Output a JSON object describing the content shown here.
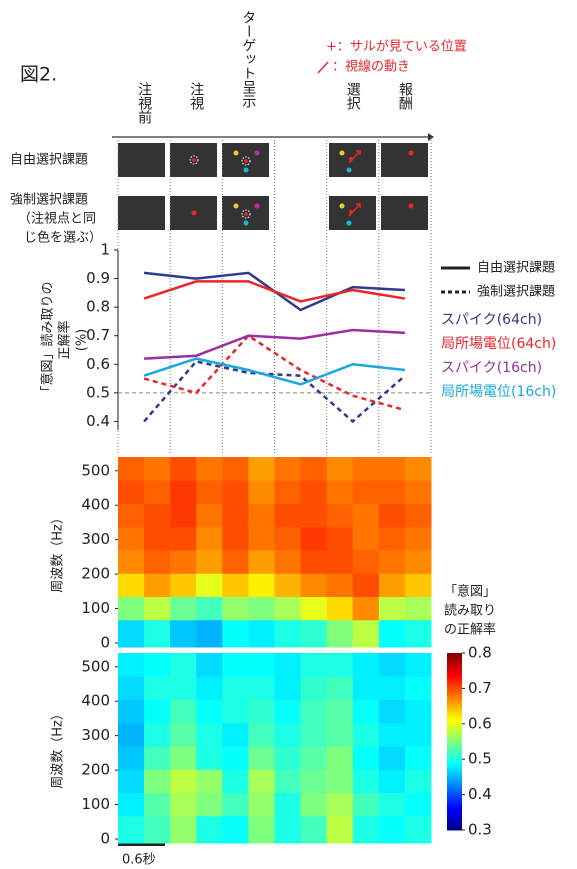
{
  "figure_label": "図2.",
  "annotations": [
    "+：サルが見ている位置",
    "：視線の動き"
  ],
  "row_labels": [
    [
      "自由選択課題"
    ],
    [
      "強制選択課題",
      "（注視点と同",
      "じ色を選ぶ）"
    ]
  ],
  "chart_data": [
    {
      "type": "line",
      "categories": [
        "注視前",
        "注視",
        "ターゲット呈示",
        null,
        "選択",
        "報酬"
      ],
      "ylabel": [
        "「意図」読み取りの",
        "正解率",
        "(%)"
      ],
      "ylim": [
        0.37,
        1.0
      ],
      "yticks": [
        0.4,
        0.5,
        0.6,
        0.7,
        0.8,
        0.9,
        1
      ],
      "hline": 0.5,
      "line_styles": [
        "自由選択課題",
        "強制選択課題"
      ],
      "series": [
        {
          "name": "スパイク(64ch)",
          "color": "#2e3a8c",
          "values": [
            0.92,
            0.9,
            0.92,
            0.79,
            0.87,
            0.86
          ],
          "forced_values": [
            0.4,
            0.61,
            0.57,
            0.56,
            0.4,
            0.56
          ]
        },
        {
          "name": "局所場電位(64ch)",
          "color": "#e8262b",
          "values": [
            0.83,
            0.89,
            0.89,
            0.82,
            0.86,
            0.83
          ],
          "forced_values": [
            0.55,
            0.5,
            0.7,
            0.58,
            0.49,
            0.44
          ]
        },
        {
          "name": "スパイク(16ch)",
          "color": "#9b2fa0",
          "values": [
            0.62,
            0.63,
            0.7,
            0.69,
            0.72,
            0.71
          ]
        },
        {
          "name": "局所場電位(16ch)",
          "color": "#1aa8e0",
          "values": [
            0.56,
            0.62,
            0.58,
            0.53,
            0.6,
            0.58
          ]
        }
      ]
    },
    {
      "type": "heatmap",
      "ylabel": "周波数（Hz）",
      "ylim": [
        0,
        540
      ],
      "yticks": [
        0,
        100,
        200,
        300,
        400,
        500
      ],
      "clim": [
        0.3,
        0.8
      ],
      "values": [
        [
          0.47,
          0.5,
          0.46,
          0.45,
          0.49,
          0.48,
          0.5,
          0.51,
          0.55,
          0.58,
          0.49,
          0.5
        ],
        [
          0.55,
          0.58,
          0.54,
          0.52,
          0.56,
          0.55,
          0.57,
          0.6,
          0.63,
          0.67,
          0.58,
          0.57
        ],
        [
          0.63,
          0.66,
          0.64,
          0.6,
          0.64,
          0.62,
          0.65,
          0.67,
          0.68,
          0.7,
          0.66,
          0.64
        ],
        [
          0.67,
          0.69,
          0.68,
          0.66,
          0.69,
          0.66,
          0.68,
          0.7,
          0.7,
          0.69,
          0.68,
          0.67
        ],
        [
          0.68,
          0.7,
          0.7,
          0.67,
          0.7,
          0.68,
          0.69,
          0.71,
          0.7,
          0.68,
          0.69,
          0.68
        ],
        [
          0.69,
          0.7,
          0.71,
          0.68,
          0.7,
          0.68,
          0.7,
          0.7,
          0.69,
          0.68,
          0.7,
          0.69
        ],
        [
          0.7,
          0.69,
          0.71,
          0.69,
          0.7,
          0.67,
          0.69,
          0.7,
          0.68,
          0.69,
          0.69,
          0.68
        ],
        [
          0.69,
          0.68,
          0.7,
          0.68,
          0.69,
          0.66,
          0.68,
          0.69,
          0.67,
          0.68,
          0.68,
          0.67
        ]
      ]
    },
    {
      "type": "heatmap",
      "ylabel": "周波数（Hz）",
      "ylim": [
        0,
        540
      ],
      "yticks": [
        0,
        100,
        200,
        300,
        400,
        500
      ],
      "clim": [
        0.3,
        0.8
      ],
      "colorbar_label": [
        "「意図」",
        "読み取り",
        "の正解率"
      ],
      "colorbar_ticks": [
        0.3,
        0.4,
        0.5,
        0.6,
        0.7,
        0.8
      ],
      "scale_bar_label": "0.6秒",
      "values": [
        [
          0.5,
          0.52,
          0.56,
          0.5,
          0.49,
          0.55,
          0.5,
          0.52,
          0.58,
          0.5,
          0.49,
          0.5
        ],
        [
          0.48,
          0.53,
          0.57,
          0.55,
          0.52,
          0.56,
          0.5,
          0.55,
          0.57,
          0.52,
          0.5,
          0.49
        ],
        [
          0.47,
          0.55,
          0.58,
          0.56,
          0.5,
          0.57,
          0.52,
          0.54,
          0.55,
          0.5,
          0.48,
          0.5
        ],
        [
          0.46,
          0.52,
          0.55,
          0.5,
          0.49,
          0.54,
          0.51,
          0.53,
          0.55,
          0.49,
          0.47,
          0.49
        ],
        [
          0.45,
          0.5,
          0.53,
          0.5,
          0.48,
          0.52,
          0.5,
          0.52,
          0.53,
          0.5,
          0.48,
          0.48
        ],
        [
          0.46,
          0.49,
          0.52,
          0.49,
          0.5,
          0.51,
          0.49,
          0.52,
          0.53,
          0.49,
          0.47,
          0.48
        ],
        [
          0.47,
          0.5,
          0.5,
          0.48,
          0.5,
          0.5,
          0.48,
          0.51,
          0.52,
          0.48,
          0.48,
          0.49
        ],
        [
          0.48,
          0.49,
          0.5,
          0.47,
          0.49,
          0.49,
          0.48,
          0.5,
          0.5,
          0.48,
          0.47,
          0.48
        ]
      ]
    }
  ]
}
